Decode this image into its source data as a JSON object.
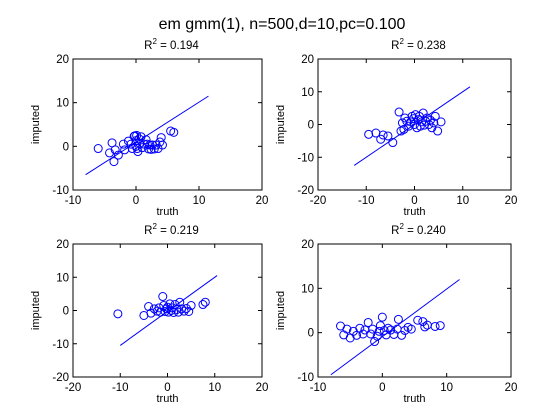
{
  "figure_title": "em gmm(1), n=500,d=10,pc=0.100",
  "colors": {
    "marker": "#0000ff",
    "axis": "#000000",
    "background": "#ffffff"
  },
  "chart_data": [
    {
      "type": "scatter",
      "r2_prefix": "R",
      "r2_exponent": "2",
      "r2_value": " = 0.194",
      "xlabel": "truth",
      "ylabel": "imputed",
      "xlim": [
        -10,
        20
      ],
      "ylim": [
        -10,
        20
      ],
      "xticks": [
        "-10",
        "0",
        "10",
        "20"
      ],
      "yticks": [
        "-10",
        "0",
        "10",
        "20"
      ],
      "fit_line": [
        [
          -8,
          -6.5
        ],
        [
          11.5,
          11.5
        ]
      ],
      "x": [
        -6,
        -4.2,
        -3.8,
        -3.5,
        -3.3,
        -2.8,
        -2,
        -1.8,
        -1.2,
        -0.8,
        -0.6,
        -0.3,
        -0.2,
        0,
        0,
        0.1,
        0.2,
        0.3,
        0.5,
        0.6,
        0.8,
        1,
        1.3,
        1.6,
        1.8,
        2,
        2.2,
        2.4,
        2.6,
        2.9,
        3.2,
        3.5,
        3.8,
        4,
        4.2,
        5.5,
        6
      ],
      "y": [
        -0.5,
        -1.5,
        0.8,
        -3.5,
        -0.8,
        -2,
        0.5,
        -0.8,
        1.2,
        0.5,
        -0.5,
        2.3,
        2.4,
        0,
        1.3,
        2.5,
        -0.5,
        -1.2,
        1.7,
        0.7,
        2.2,
        -0.3,
        0.5,
        1.5,
        0.5,
        -0.6,
        0.3,
        -0.7,
        0.3,
        -0.6,
        0.3,
        -0.5,
        1,
        2,
        0.3,
        3.5,
        3.2
      ]
    },
    {
      "type": "scatter",
      "r2_prefix": "R",
      "r2_exponent": "2",
      "r2_value": " = 0.238",
      "xlabel": "truth",
      "ylabel": "imputed",
      "xlim": [
        -20,
        20
      ],
      "ylim": [
        -20,
        20
      ],
      "xticks": [
        "-20",
        "-10",
        "0",
        "10",
        "20"
      ],
      "yticks": [
        "-20",
        "-10",
        "0",
        "10",
        "20"
      ],
      "fit_line": [
        [
          -12.5,
          -12.5
        ],
        [
          11.5,
          11.5
        ]
      ],
      "x": [
        -9.5,
        -8,
        -7,
        -6.5,
        -5.5,
        -4.5,
        -3.2,
        -2.8,
        -2.5,
        -2.2,
        -2,
        -1.6,
        -1.2,
        -0.8,
        -0.5,
        -0.2,
        0,
        0.2,
        0.5,
        0.8,
        1,
        1.2,
        1.5,
        1.8,
        2,
        2.3,
        2.6,
        3,
        3.3,
        3.6,
        4,
        4.3,
        4.8,
        5.5
      ],
      "y": [
        -3,
        -2.6,
        -4.5,
        -3.2,
        -3.5,
        -5.5,
        3.8,
        -2,
        0.5,
        -1.5,
        2,
        1,
        -0.5,
        0.8,
        2.5,
        1.8,
        0,
        3,
        -1,
        1.5,
        2.5,
        -0.5,
        0.8,
        3.5,
        -0.2,
        1,
        2,
        0,
        1.3,
        -1,
        0.5,
        2.5,
        -2,
        0.8
      ]
    },
    {
      "type": "scatter",
      "r2_prefix": "R",
      "r2_exponent": "2",
      "r2_value": " = 0.219",
      "xlabel": "truth",
      "ylabel": "imputed",
      "xlim": [
        -20,
        20
      ],
      "ylim": [
        -20,
        20
      ],
      "xticks": [
        "-20",
        "-10",
        "0",
        "10",
        "20"
      ],
      "yticks": [
        "-20",
        "-10",
        "0",
        "10",
        "20"
      ],
      "fit_line": [
        [
          -10,
          -10.5
        ],
        [
          10.5,
          10.5
        ]
      ],
      "x": [
        -10.5,
        -5,
        -4,
        -3.5,
        -2.8,
        -2.2,
        -1.8,
        -1.5,
        -1,
        -0.8,
        -0.5,
        -0.2,
        0,
        0.2,
        0.5,
        0.8,
        1,
        1.3,
        1.6,
        2,
        2.3,
        2.6,
        3,
        3.5,
        4,
        4.5,
        5,
        7.5,
        8
      ],
      "y": [
        -1,
        -1.5,
        1.2,
        -0.8,
        0.5,
        -0.2,
        0.8,
        -0.5,
        4.2,
        1.5,
        -0.3,
        0.5,
        1,
        -0.5,
        2,
        0,
        0.8,
        -0.6,
        1.8,
        0.3,
        -0.5,
        2.5,
        0.5,
        -0.2,
        0.6,
        -0.3,
        1.5,
        1.8,
        2.5
      ]
    },
    {
      "type": "scatter",
      "r2_prefix": "R",
      "r2_exponent": "2",
      "r2_value": " = 0.240",
      "xlabel": "truth",
      "ylabel": "imputed",
      "xlim": [
        -10,
        20
      ],
      "ylim": [
        -10,
        20
      ],
      "xticks": [
        "-10",
        "0",
        "10",
        "20"
      ],
      "yticks": [
        "-10",
        "0",
        "10",
        "20"
      ],
      "fit_line": [
        [
          -8,
          -9.5
        ],
        [
          12,
          12
        ]
      ],
      "x": [
        -6.5,
        -6,
        -5.5,
        -5,
        -4.5,
        -4,
        -3.5,
        -3,
        -2.7,
        -2.2,
        -1.8,
        -1.5,
        -1.2,
        -0.8,
        -0.5,
        -0.3,
        0,
        0.3,
        0.6,
        0.9,
        1.3,
        1.8,
        2.3,
        2.5,
        3,
        3.5,
        4,
        4.5,
        5.5,
        6.3,
        6.6,
        7,
        8.2,
        9
      ],
      "y": [
        1.5,
        -0.5,
        0.8,
        -1.2,
        0.3,
        -0.6,
        1,
        -0.3,
        0.6,
        2.3,
        -0.3,
        0.8,
        -2,
        -0.8,
        0.3,
        1.6,
        3.5,
        0.5,
        -0.5,
        1,
        0.6,
        -0.4,
        0.8,
        3,
        -0.6,
        0.5,
        1.2,
        0.8,
        2.8,
        2.5,
        1.3,
        1.7,
        1.4,
        1.6
      ]
    }
  ]
}
